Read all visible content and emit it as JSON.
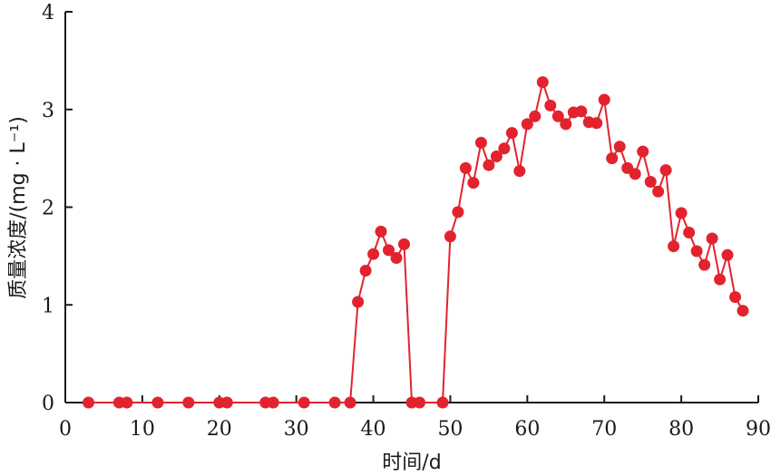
{
  "chart_data": {
    "type": "line",
    "xlabel": "时间/d",
    "ylabel": "质量浓度/(mg · L⁻¹)",
    "xlim": [
      0,
      90
    ],
    "ylim": [
      0,
      4
    ],
    "x_ticks": [
      "0",
      "10",
      "20",
      "30",
      "40",
      "50",
      "60",
      "70",
      "80",
      "90"
    ],
    "y_ticks": [
      "0",
      "1",
      "2",
      "3",
      "4"
    ],
    "grid": false,
    "colors": {
      "series": "#e2232e",
      "axis": "#1a1a1a"
    },
    "series": [
      {
        "x": [
          3,
          7,
          8,
          12,
          16,
          20,
          21,
          26,
          27,
          31,
          35,
          37,
          38,
          39,
          40,
          41,
          42,
          43,
          44,
          45,
          46,
          49,
          50,
          51,
          52,
          53,
          54,
          55,
          56,
          57,
          58,
          59,
          60,
          61,
          62,
          63,
          64,
          65,
          66,
          67,
          68,
          69,
          70,
          71,
          72,
          73,
          74,
          75,
          76,
          77,
          78,
          79,
          80,
          81,
          82,
          83,
          84,
          85,
          86,
          87,
          88
        ],
        "y": [
          0,
          0,
          0,
          0,
          0,
          0,
          0,
          0,
          0,
          0,
          0,
          0,
          1.03,
          1.35,
          1.52,
          1.75,
          1.56,
          1.48,
          1.62,
          0,
          0,
          0,
          1.7,
          1.95,
          2.4,
          2.25,
          2.66,
          2.43,
          2.52,
          2.6,
          2.76,
          2.37,
          2.85,
          2.93,
          3.28,
          3.04,
          2.93,
          2.85,
          2.97,
          2.98,
          2.87,
          2.86,
          3.1,
          2.5,
          2.62,
          2.4,
          2.34,
          2.57,
          2.26,
          2.16,
          2.38,
          1.6,
          1.94,
          1.74,
          1.55,
          1.41,
          1.68,
          1.26,
          1.51,
          1.08,
          0.94
        ]
      }
    ]
  }
}
